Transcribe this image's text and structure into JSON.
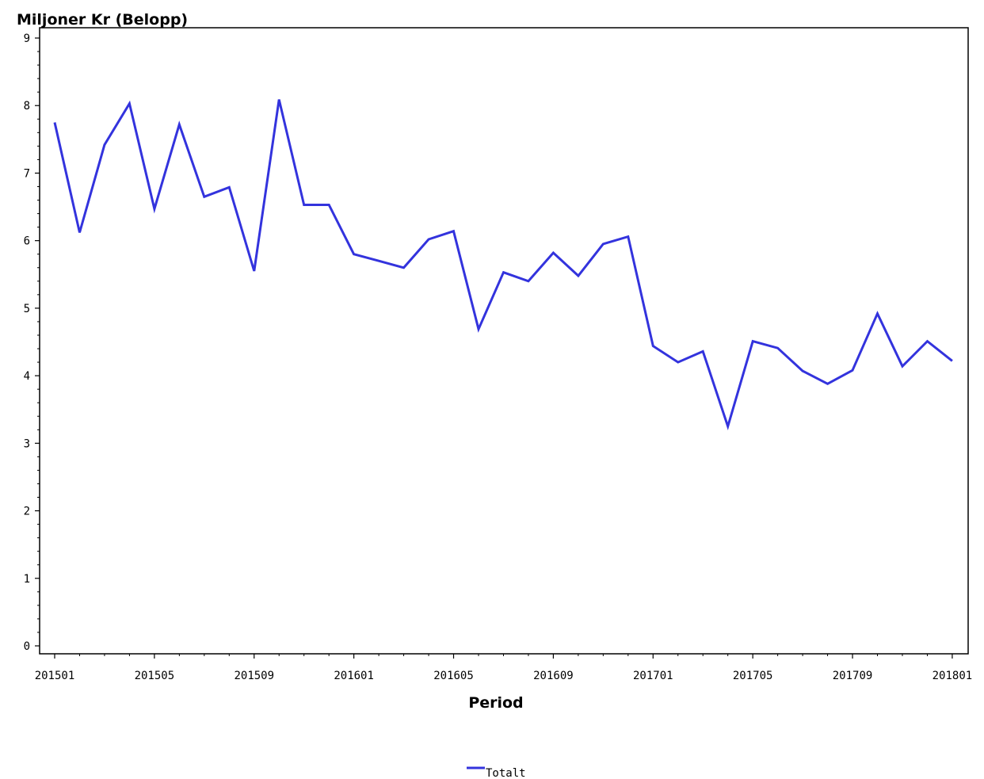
{
  "chart_data": {
    "type": "line",
    "ylabel": "Miljoner Kr (Belopp)",
    "xlabel": "Period",
    "ylim": [
      0,
      9
    ],
    "yticks": [
      "0",
      "1",
      "2",
      "3",
      "4",
      "5",
      "6",
      "7",
      "8",
      "9"
    ],
    "xtick_labels": [
      "201501",
      "201505",
      "201509",
      "201601",
      "201605",
      "201609",
      "201701",
      "201705",
      "201709",
      "201801"
    ],
    "x": [
      "201501",
      "201502",
      "201503",
      "201504",
      "201505",
      "201506",
      "201507",
      "201508",
      "201509",
      "201510",
      "201511",
      "201512",
      "201601",
      "201602",
      "201603",
      "201604",
      "201605",
      "201606",
      "201607",
      "201608",
      "201609",
      "201610",
      "201611",
      "201612",
      "201701",
      "201702",
      "201703",
      "201704",
      "201705",
      "201706",
      "201707",
      "201708",
      "201709",
      "201710",
      "201711",
      "201712",
      "201801"
    ],
    "series": [
      {
        "name": "Totalt",
        "color": "#3333dd",
        "values": [
          7.75,
          6.12,
          7.42,
          8.03,
          6.47,
          7.72,
          6.65,
          6.79,
          5.55,
          8.09,
          6.53,
          6.53,
          5.8,
          5.7,
          5.6,
          6.02,
          6.14,
          4.69,
          5.53,
          5.4,
          5.82,
          5.48,
          5.95,
          6.06,
          4.44,
          4.2,
          4.36,
          3.25,
          4.51,
          4.41,
          4.07,
          3.88,
          4.08,
          4.92,
          4.14,
          4.51,
          4.22
        ]
      }
    ],
    "grid": false,
    "legend_position": "bottom-center"
  }
}
